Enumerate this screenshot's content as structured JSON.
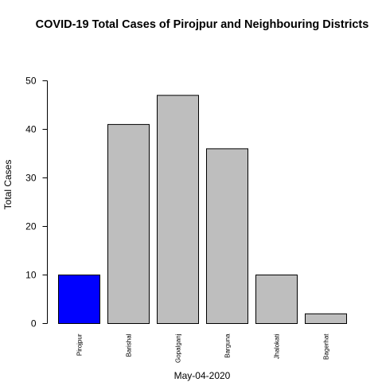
{
  "chart_data": {
    "type": "bar",
    "title": "COVID-19 Total Cases of Pirojpur and Neighbouring Districts",
    "xlabel": "May-04-2020",
    "ylabel": "Total Cases",
    "categories": [
      "Pirojpur",
      "Barishal",
      "Gopalganj",
      "Barguna",
      "Jhalokati",
      "Bagerhat"
    ],
    "values": [
      10,
      41,
      47,
      36,
      10,
      2
    ],
    "bar_colors": [
      "#0000ff",
      "#bebebe",
      "#bebebe",
      "#bebebe",
      "#bebebe",
      "#bebebe"
    ],
    "ylim": [
      0,
      50
    ],
    "yticks": [
      0,
      10,
      20,
      30,
      40,
      50
    ],
    "grid": false,
    "legend": "none"
  }
}
